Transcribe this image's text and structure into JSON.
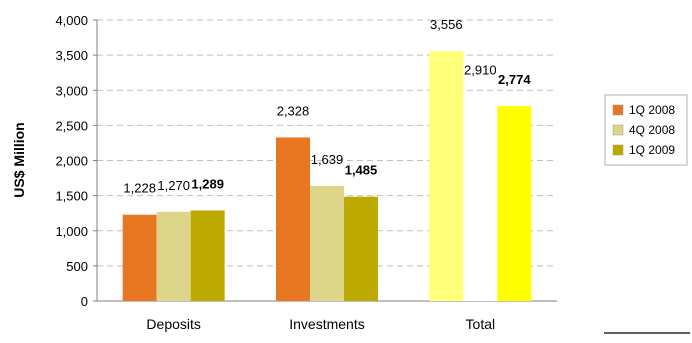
{
  "chart_data": {
    "type": "bar",
    "title": "",
    "xlabel": "",
    "ylabel": "US$ Million",
    "ylim": [
      0,
      4000
    ],
    "yticks": [
      0,
      500,
      1000,
      1500,
      2000,
      2500,
      3000,
      3500,
      4000
    ],
    "ytick_labels": [
      "0",
      "500",
      "1,000",
      "1,500",
      "2,000",
      "2,500",
      "3,000",
      "3,500",
      "4,000"
    ],
    "grid": "horizontal dashed",
    "legend_position": "right",
    "categories": [
      "Deposits",
      "Investments",
      "Total"
    ],
    "legend": [
      {
        "name": "1Q 2008",
        "color": "#E87722"
      },
      {
        "name": "4Q 2008",
        "color": "#DDD58A"
      },
      {
        "name": "1Q 2009",
        "color": "#BDAA00"
      }
    ],
    "bars": [
      {
        "category": "Deposits",
        "series": "1Q 2008",
        "value": 1228,
        "label": "1,228",
        "color": "#E87722",
        "bold": false
      },
      {
        "category": "Deposits",
        "series": "4Q 2008",
        "value": 1270,
        "label": "1,270",
        "color": "#DDD58A",
        "bold": false
      },
      {
        "category": "Deposits",
        "series": "1Q 2009",
        "value": 1289,
        "label": "1,289",
        "color": "#BDAA00",
        "bold": true
      },
      {
        "category": "Investments",
        "series": "1Q 2008",
        "value": 2328,
        "label": "2,328",
        "color": "#E87722",
        "bold": false
      },
      {
        "category": "Investments",
        "series": "4Q 2008",
        "value": 1639,
        "label": "1,639",
        "color": "#DDD58A",
        "bold": false
      },
      {
        "category": "Investments",
        "series": "1Q 2009",
        "value": 1485,
        "label": "1,485",
        "color": "#BDAA00",
        "bold": true
      },
      {
        "category": "Total",
        "series": "1Q 2008",
        "value": 3556,
        "label": "3,556",
        "color": "#FFFF7A",
        "bold": false
      },
      {
        "category": "Total",
        "series": "4Q 2008",
        "value": 2910,
        "label": "2,910",
        "color": "#FFFFFF",
        "bold": false
      },
      {
        "category": "Total",
        "series": "1Q 2009",
        "value": 2774,
        "label": "2,774",
        "color": "#FFFF00",
        "bold": true
      }
    ]
  }
}
